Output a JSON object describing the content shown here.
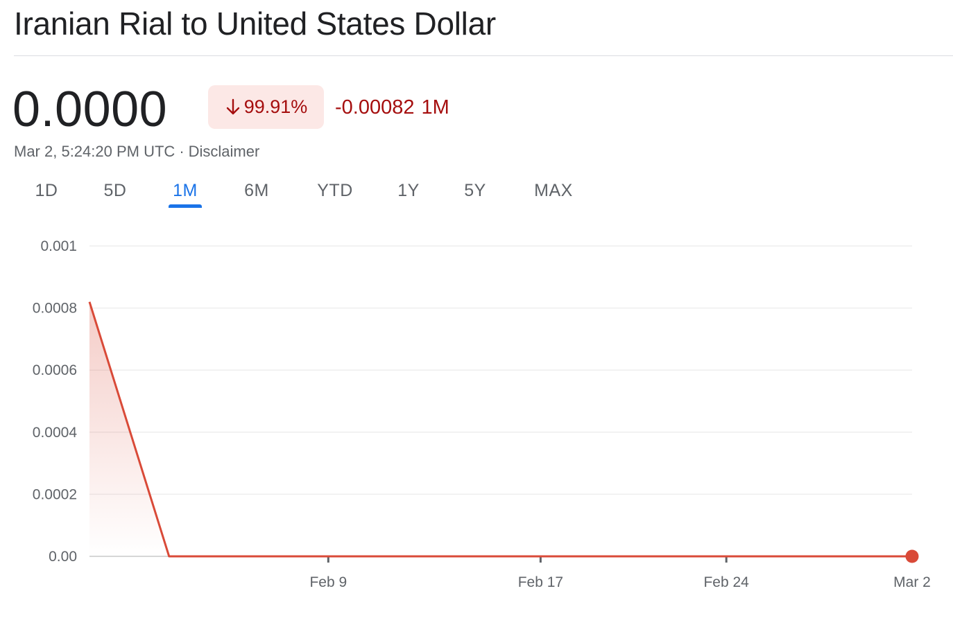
{
  "header": {
    "title": "Iranian Rial to United States Dollar"
  },
  "quote": {
    "price": "0.0000",
    "change_percent": "99.91%",
    "change_direction": "down",
    "change_value": "-0.00082",
    "change_period": "1M",
    "timestamp": "Mar 2, 5:24:20 PM UTC",
    "separator": "·",
    "disclaimer_label": "Disclaimer"
  },
  "tabs": [
    {
      "label": "1D",
      "active": false
    },
    {
      "label": "5D",
      "active": false
    },
    {
      "label": "1M",
      "active": true
    },
    {
      "label": "6M",
      "active": false
    },
    {
      "label": "YTD",
      "active": false
    },
    {
      "label": "1Y",
      "active": false
    },
    {
      "label": "5Y",
      "active": false
    },
    {
      "label": "MAX",
      "active": false
    }
  ],
  "colors": {
    "negative": "#a50e0e",
    "line": "#d94a38",
    "accent": "#1a73e8",
    "badge_bg": "#fce8e6"
  },
  "chart_data": {
    "type": "line",
    "title": "",
    "xlabel": "",
    "ylabel": "",
    "x": [
      "2024-01-31",
      "2024-02-03",
      "2024-03-02"
    ],
    "series": [
      {
        "values": [
          0.00082,
          0.0,
          0.0
        ]
      }
    ],
    "ylim": [
      0,
      0.001
    ],
    "xlim": [
      "2024-01-31",
      "2024-03-02"
    ],
    "yticks": [
      {
        "value": 0.001,
        "label": "0.001"
      },
      {
        "value": 0.0008,
        "label": "0.0008"
      },
      {
        "value": 0.0006,
        "label": "0.0006"
      },
      {
        "value": 0.0004,
        "label": "0.0004"
      },
      {
        "value": 0.0002,
        "label": "0.0002"
      },
      {
        "value": 0,
        "label": "0.00"
      }
    ],
    "xticks": [
      {
        "date": "2024-02-09",
        "label": "Feb 9"
      },
      {
        "date": "2024-02-17",
        "label": "Feb 17"
      },
      {
        "date": "2024-02-24",
        "label": "Feb 24"
      },
      {
        "date": "2024-03-02",
        "label": "Mar 2"
      }
    ],
    "grid": true,
    "area_fill": true,
    "end_marker": true
  }
}
